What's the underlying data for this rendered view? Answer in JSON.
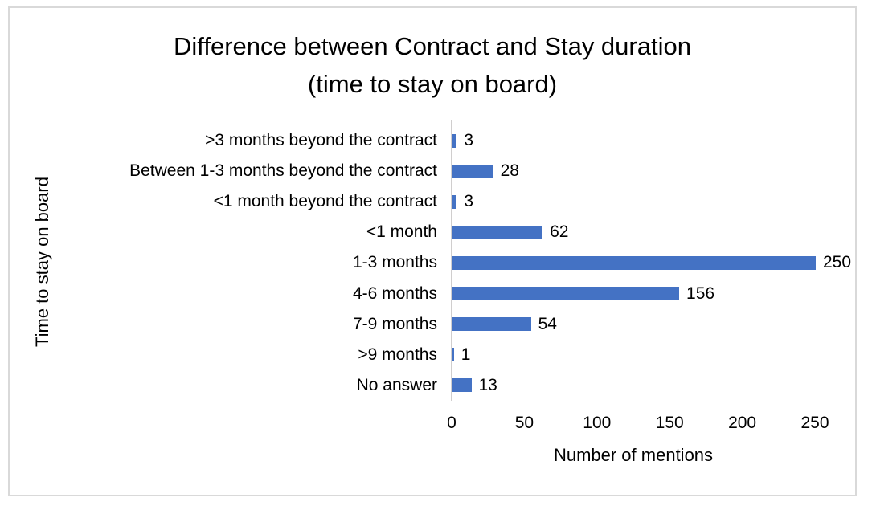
{
  "chart_data": {
    "type": "bar",
    "orientation": "horizontal",
    "title": "Difference between Contract and Stay duration (time to stay on board)",
    "title_lines": [
      "Difference between Contract and Stay duration",
      "(time to stay on board)"
    ],
    "categories": [
      ">3 months beyond the contract",
      "Between 1-3 months beyond the contract",
      "<1 month beyond the contract",
      "<1 month",
      "1-3 months",
      "4-6 months",
      "7-9 months",
      ">9 months",
      "No answer"
    ],
    "values": [
      3,
      28,
      3,
      62,
      250,
      156,
      54,
      1,
      13
    ],
    "xlabel": "Number of mentions",
    "ylabel": "Time to stay on board",
    "xticks": [
      0,
      50,
      100,
      150,
      200,
      250
    ],
    "xlim": [
      0,
      250
    ],
    "data_labels": true,
    "grid": false,
    "legend": false,
    "bar_color": "#4472C4",
    "axis_line_color": "#D0CECE",
    "frame_border_color": "#D9D9D9",
    "text_color": "#000000"
  }
}
